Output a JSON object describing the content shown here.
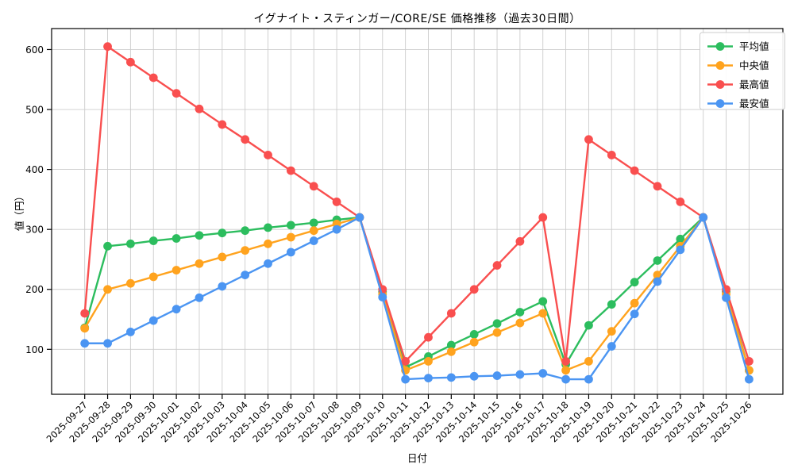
{
  "chart_data": {
    "type": "line",
    "title": "イグナイト・スティンガー/CORE/SE 価格推移（過去30日間）",
    "xlabel": "日付",
    "ylabel": "値（円）",
    "x": [
      "2025-09-27",
      "2025-09-28",
      "2025-09-29",
      "2025-09-30",
      "2025-10-01",
      "2025-10-02",
      "2025-10-03",
      "2025-10-04",
      "2025-10-05",
      "2025-10-06",
      "2025-10-07",
      "2025-10-08",
      "2025-10-09",
      "2025-10-10",
      "2025-10-11",
      "2025-10-12",
      "2025-10-13",
      "2025-10-14",
      "2025-10-15",
      "2025-10-16",
      "2025-10-17",
      "2025-10-18",
      "2025-10-19",
      "2025-10-20",
      "2025-10-21",
      "2025-10-22",
      "2025-10-23",
      "2025-10-24",
      "2025-10-25",
      "2025-10-26"
    ],
    "series": [
      {
        "name": "平均値",
        "key": "average",
        "color": "#2cbd5e",
        "values": [
          136,
          272,
          276,
          281,
          285,
          290,
          294,
          298,
          303,
          307,
          311,
          316,
          320,
          196,
          70,
          88,
          107,
          125,
          143,
          162,
          180,
          75,
          140,
          175,
          212,
          248,
          284,
          320,
          196,
          65
        ]
      },
      {
        "name": "中央値",
        "key": "median",
        "color": "#ffa31e",
        "values": [
          135,
          200,
          210,
          221,
          232,
          243,
          254,
          265,
          276,
          287,
          298,
          309,
          320,
          192,
          65,
          80,
          96,
          112,
          128,
          144,
          160,
          65,
          80,
          130,
          177,
          224,
          272,
          320,
          192,
          65
        ]
      },
      {
        "name": "最高値",
        "key": "max",
        "color": "#f94f4f",
        "values": [
          160,
          605,
          579,
          553,
          527,
          501,
          475,
          450,
          424,
          398,
          372,
          346,
          320,
          200,
          80,
          120,
          160,
          200,
          240,
          280,
          320,
          80,
          450,
          424,
          398,
          372,
          346,
          320,
          200,
          80
        ]
      },
      {
        "name": "最安値",
        "key": "min",
        "color": "#4b95f2",
        "values": [
          110,
          110,
          129,
          148,
          167,
          186,
          205,
          224,
          243,
          262,
          281,
          300,
          320,
          187,
          50,
          52,
          53,
          55,
          56,
          58,
          60,
          50,
          50,
          105,
          159,
          213,
          266,
          320,
          186,
          50
        ]
      }
    ],
    "yticks": [
      100,
      200,
      300,
      400,
      500,
      600
    ],
    "ylim": [
      25,
      635
    ],
    "grid": true,
    "legend_position": "upper right",
    "colors": {
      "grid": "#cccccc",
      "axis": "#000000",
      "background": "#ffffff",
      "legend_border": "#cccccc",
      "text": "#000000"
    }
  }
}
